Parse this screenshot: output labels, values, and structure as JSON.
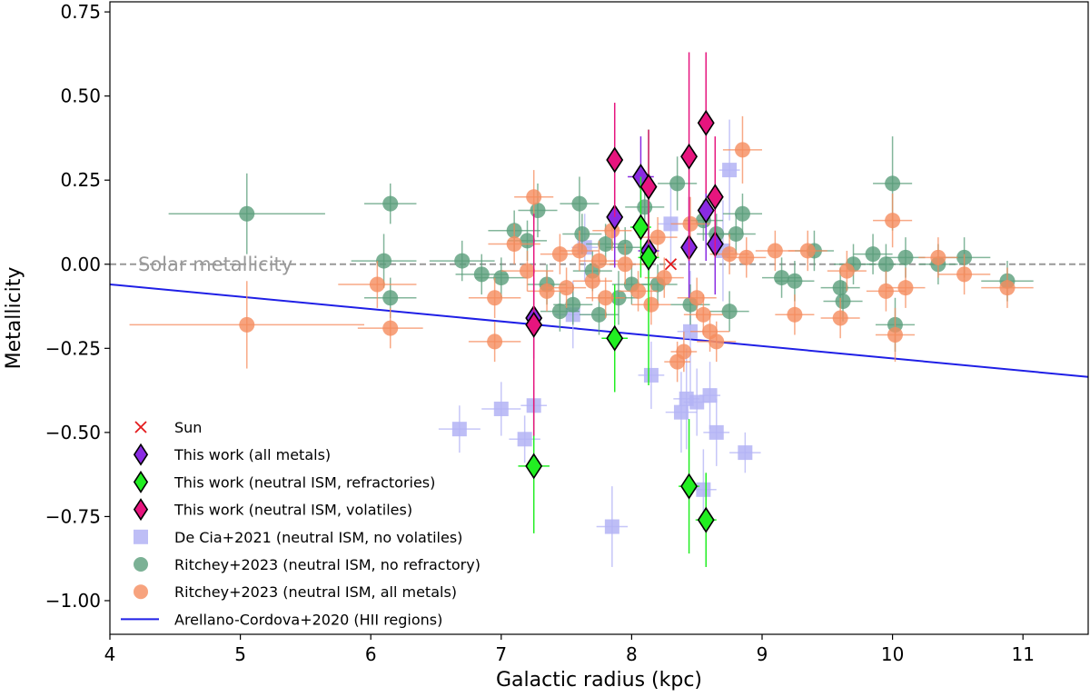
{
  "chart_data": {
    "type": "scatter",
    "title": "",
    "xlabel": "Galactic radius (kpc)",
    "ylabel": "Metallicity",
    "xlim": [
      4,
      11.5
    ],
    "ylim": [
      -1.1,
      0.78
    ],
    "xticks": [
      4,
      5,
      6,
      7,
      8,
      9,
      10,
      11
    ],
    "xtick_labels": [
      "4",
      "5",
      "6",
      "7",
      "8",
      "9",
      "10",
      "11"
    ],
    "yticks": [
      -1.0,
      -0.75,
      -0.5,
      -0.25,
      0.0,
      0.25,
      0.5,
      0.75
    ],
    "ytick_labels": [
      "−1.00",
      "−0.75",
      "−0.50",
      "−0.25",
      "0.00",
      "0.25",
      "0.50",
      "0.75"
    ],
    "grid": false,
    "legend_position": "bottom-left",
    "annotations": [
      {
        "id": "solar",
        "text": "Solar metallicity",
        "x": 4.22,
        "y": 0.03
      }
    ],
    "reference_lines": [
      {
        "id": "solar-line",
        "name": "Solar metallicity",
        "y": 0.0,
        "style": "dashed",
        "color": "#999999"
      }
    ],
    "series": [
      {
        "id": "arellano",
        "name": "Arellano-Cordova+2020 (HII regions)",
        "kind": "line",
        "color": "#1f1fe6",
        "points": [
          [
            4,
            -0.06
          ],
          [
            11.5,
            -0.335
          ]
        ]
      },
      {
        "id": "decia",
        "name": "De Cia+2021 (neutral ISM, no volatiles)",
        "kind": "scatter",
        "marker": "square",
        "color": "#b3b3f5",
        "points": [
          {
            "x": 6.68,
            "y": -0.49,
            "xe": 0.16,
            "ye": 0.07
          },
          {
            "x": 7.0,
            "y": -0.43,
            "xe": 0.15,
            "ye": 0.08
          },
          {
            "x": 7.18,
            "y": -0.52,
            "xe": 0.12,
            "ye": 0.07
          },
          {
            "x": 7.25,
            "y": -0.42,
            "xe": 0.1,
            "ye": 0.06
          },
          {
            "x": 7.55,
            "y": -0.15,
            "xe": 0.14,
            "ye": 0.1
          },
          {
            "x": 7.64,
            "y": 0.05,
            "xe": 0.1,
            "ye": 0.1
          },
          {
            "x": 7.85,
            "y": -0.78,
            "xe": 0.12,
            "ye": 0.12
          },
          {
            "x": 8.15,
            "y": -0.33,
            "xe": 0.1,
            "ye": 0.1
          },
          {
            "x": 8.3,
            "y": 0.12,
            "xe": 0.1,
            "ye": 0.12
          },
          {
            "x": 8.38,
            "y": -0.44,
            "xe": 0.12,
            "ye": 0.12
          },
          {
            "x": 8.42,
            "y": -0.4,
            "xe": 0.1,
            "ye": 0.15
          },
          {
            "x": 8.45,
            "y": -0.2,
            "xe": 0.1,
            "ye": 0.18
          },
          {
            "x": 8.5,
            "y": -0.41,
            "xe": 0.1,
            "ye": 0.1
          },
          {
            "x": 8.55,
            "y": -0.67,
            "xe": 0.1,
            "ye": 0.12
          },
          {
            "x": 8.6,
            "y": -0.39,
            "xe": 0.08,
            "ye": 0.1
          },
          {
            "x": 8.65,
            "y": -0.5,
            "xe": 0.1,
            "ye": 0.1
          },
          {
            "x": 8.7,
            "y": 0.04,
            "xe": 0.08,
            "ye": 0.15
          },
          {
            "x": 8.75,
            "y": 0.28,
            "xe": 0.08,
            "ye": 0.15
          },
          {
            "x": 8.87,
            "y": -0.56,
            "xe": 0.12,
            "ye": 0.06
          }
        ]
      },
      {
        "id": "ritchey-norefr",
        "name": "Ritchey+2023 (neutral ISM, no refractory)",
        "kind": "scatter",
        "marker": "circle",
        "color": "#5a9e7a",
        "points": [
          {
            "x": 5.05,
            "y": 0.15,
            "xe": 0.6,
            "ye": 0.12
          },
          {
            "x": 6.1,
            "y": 0.01,
            "xe": 0.25,
            "ye": 0.08
          },
          {
            "x": 6.15,
            "y": 0.18,
            "xe": 0.2,
            "ye": 0.06
          },
          {
            "x": 6.15,
            "y": -0.1,
            "xe": 0.2,
            "ye": 0.06
          },
          {
            "x": 6.7,
            "y": 0.01,
            "xe": 0.25,
            "ye": 0.06
          },
          {
            "x": 6.85,
            "y": -0.03,
            "xe": 0.2,
            "ye": 0.06
          },
          {
            "x": 7.0,
            "y": -0.04,
            "xe": 0.2,
            "ye": 0.06
          },
          {
            "x": 7.1,
            "y": 0.1,
            "xe": 0.2,
            "ye": 0.06
          },
          {
            "x": 7.2,
            "y": 0.07,
            "xe": 0.15,
            "ye": 0.06
          },
          {
            "x": 7.28,
            "y": 0.16,
            "xe": 0.15,
            "ye": 0.08
          },
          {
            "x": 7.35,
            "y": -0.06,
            "xe": 0.15,
            "ye": 0.06
          },
          {
            "x": 7.45,
            "y": -0.14,
            "xe": 0.15,
            "ye": 0.06
          },
          {
            "x": 7.55,
            "y": -0.12,
            "xe": 0.15,
            "ye": 0.06
          },
          {
            "x": 7.6,
            "y": 0.18,
            "xe": 0.15,
            "ye": 0.08
          },
          {
            "x": 7.62,
            "y": 0.09,
            "xe": 0.15,
            "ye": 0.06
          },
          {
            "x": 7.7,
            "y": -0.02,
            "xe": 0.15,
            "ye": 0.06
          },
          {
            "x": 7.75,
            "y": -0.15,
            "xe": 0.15,
            "ye": 0.06
          },
          {
            "x": 7.8,
            "y": 0.06,
            "xe": 0.15,
            "ye": 0.06
          },
          {
            "x": 7.9,
            "y": -0.1,
            "xe": 0.15,
            "ye": 0.08
          },
          {
            "x": 7.95,
            "y": 0.05,
            "xe": 0.15,
            "ye": 0.06
          },
          {
            "x": 8.0,
            "y": -0.06,
            "xe": 0.15,
            "ye": 0.06
          },
          {
            "x": 8.1,
            "y": 0.17,
            "xe": 0.15,
            "ye": 0.08
          },
          {
            "x": 8.2,
            "y": -0.06,
            "xe": 0.15,
            "ye": 0.06
          },
          {
            "x": 8.35,
            "y": 0.24,
            "xe": 0.15,
            "ye": 0.08
          },
          {
            "x": 8.45,
            "y": -0.12,
            "xe": 0.15,
            "ye": 0.06
          },
          {
            "x": 8.55,
            "y": 0.13,
            "xe": 0.15,
            "ye": 0.06
          },
          {
            "x": 8.65,
            "y": 0.09,
            "xe": 0.15,
            "ye": 0.06
          },
          {
            "x": 8.75,
            "y": -0.14,
            "xe": 0.15,
            "ye": 0.06
          },
          {
            "x": 8.8,
            "y": 0.09,
            "xe": 0.15,
            "ye": 0.06
          },
          {
            "x": 8.85,
            "y": 0.15,
            "xe": 0.15,
            "ye": 0.06
          },
          {
            "x": 9.15,
            "y": -0.04,
            "xe": 0.15,
            "ye": 0.06
          },
          {
            "x": 9.25,
            "y": -0.05,
            "xe": 0.15,
            "ye": 0.06
          },
          {
            "x": 9.4,
            "y": 0.04,
            "xe": 0.15,
            "ye": 0.06
          },
          {
            "x": 9.6,
            "y": -0.07,
            "xe": 0.15,
            "ye": 0.06
          },
          {
            "x": 9.62,
            "y": -0.11,
            "xe": 0.15,
            "ye": 0.06
          },
          {
            "x": 9.7,
            "y": 0.0,
            "xe": 0.15,
            "ye": 0.06
          },
          {
            "x": 9.85,
            "y": 0.03,
            "xe": 0.15,
            "ye": 0.06
          },
          {
            "x": 9.95,
            "y": 0.0,
            "xe": 0.15,
            "ye": 0.06
          },
          {
            "x": 10.0,
            "y": 0.24,
            "xe": 0.15,
            "ye": 0.14
          },
          {
            "x": 10.02,
            "y": -0.18,
            "xe": 0.15,
            "ye": 0.08
          },
          {
            "x": 10.1,
            "y": 0.02,
            "xe": 0.15,
            "ye": 0.06
          },
          {
            "x": 10.35,
            "y": 0.0,
            "xe": 0.15,
            "ye": 0.06
          },
          {
            "x": 10.55,
            "y": 0.02,
            "xe": 0.2,
            "ye": 0.06
          },
          {
            "x": 10.88,
            "y": -0.05,
            "xe": 0.2,
            "ye": 0.06
          }
        ]
      },
      {
        "id": "ritchey-all",
        "name": "Ritchey+2023 (neutral ISM, all metals)",
        "kind": "scatter",
        "marker": "circle",
        "color": "#f58c5e",
        "points": [
          {
            "x": 5.05,
            "y": -0.18,
            "xe": 0.9,
            "ye": 0.13
          },
          {
            "x": 6.05,
            "y": -0.06,
            "xe": 0.3,
            "ye": 0.07
          },
          {
            "x": 6.15,
            "y": -0.19,
            "xe": 0.25,
            "ye": 0.06
          },
          {
            "x": 6.95,
            "y": -0.1,
            "xe": 0.2,
            "ye": 0.06
          },
          {
            "x": 6.95,
            "y": -0.23,
            "xe": 0.2,
            "ye": 0.06
          },
          {
            "x": 7.1,
            "y": 0.06,
            "xe": 0.2,
            "ye": 0.06
          },
          {
            "x": 7.2,
            "y": -0.02,
            "xe": 0.2,
            "ye": 0.06
          },
          {
            "x": 7.25,
            "y": 0.2,
            "xe": 0.15,
            "ye": 0.08
          },
          {
            "x": 7.35,
            "y": -0.08,
            "xe": 0.15,
            "ye": 0.06
          },
          {
            "x": 7.45,
            "y": 0.03,
            "xe": 0.15,
            "ye": 0.06
          },
          {
            "x": 7.5,
            "y": -0.07,
            "xe": 0.15,
            "ye": 0.06
          },
          {
            "x": 7.6,
            "y": 0.04,
            "xe": 0.15,
            "ye": 0.06
          },
          {
            "x": 7.7,
            "y": -0.05,
            "xe": 0.15,
            "ye": 0.06
          },
          {
            "x": 7.75,
            "y": 0.01,
            "xe": 0.15,
            "ye": 0.06
          },
          {
            "x": 7.8,
            "y": -0.1,
            "xe": 0.15,
            "ye": 0.06
          },
          {
            "x": 7.85,
            "y": 0.1,
            "xe": 0.15,
            "ye": 0.06
          },
          {
            "x": 7.95,
            "y": 0.0,
            "xe": 0.15,
            "ye": 0.06
          },
          {
            "x": 8.05,
            "y": -0.08,
            "xe": 0.15,
            "ye": 0.06
          },
          {
            "x": 8.15,
            "y": -0.12,
            "xe": 0.15,
            "ye": 0.06
          },
          {
            "x": 8.2,
            "y": 0.08,
            "xe": 0.15,
            "ye": 0.06
          },
          {
            "x": 8.25,
            "y": -0.04,
            "xe": 0.15,
            "ye": 0.06
          },
          {
            "x": 8.35,
            "y": -0.29,
            "xe": 0.1,
            "ye": 0.06
          },
          {
            "x": 8.4,
            "y": -0.26,
            "xe": 0.1,
            "ye": 0.06
          },
          {
            "x": 8.45,
            "y": 0.12,
            "xe": 0.15,
            "ye": 0.08
          },
          {
            "x": 8.5,
            "y": -0.1,
            "xe": 0.15,
            "ye": 0.06
          },
          {
            "x": 8.55,
            "y": -0.15,
            "xe": 0.15,
            "ye": 0.06
          },
          {
            "x": 8.6,
            "y": -0.2,
            "xe": 0.15,
            "ye": 0.06
          },
          {
            "x": 8.65,
            "y": -0.23,
            "xe": 0.15,
            "ye": 0.06
          },
          {
            "x": 8.75,
            "y": 0.03,
            "xe": 0.15,
            "ye": 0.06
          },
          {
            "x": 8.85,
            "y": 0.34,
            "xe": 0.15,
            "ye": 0.1
          },
          {
            "x": 8.88,
            "y": 0.02,
            "xe": 0.15,
            "ye": 0.06
          },
          {
            "x": 9.1,
            "y": 0.04,
            "xe": 0.15,
            "ye": 0.06
          },
          {
            "x": 9.25,
            "y": -0.15,
            "xe": 0.15,
            "ye": 0.06
          },
          {
            "x": 9.35,
            "y": 0.04,
            "xe": 0.15,
            "ye": 0.06
          },
          {
            "x": 9.6,
            "y": -0.16,
            "xe": 0.15,
            "ye": 0.06
          },
          {
            "x": 9.65,
            "y": -0.02,
            "xe": 0.15,
            "ye": 0.06
          },
          {
            "x": 9.95,
            "y": -0.08,
            "xe": 0.15,
            "ye": 0.06
          },
          {
            "x": 10.0,
            "y": 0.13,
            "xe": 0.15,
            "ye": 0.08
          },
          {
            "x": 10.02,
            "y": -0.21,
            "xe": 0.15,
            "ye": 0.08
          },
          {
            "x": 10.1,
            "y": -0.07,
            "xe": 0.15,
            "ye": 0.06
          },
          {
            "x": 10.35,
            "y": 0.02,
            "xe": 0.15,
            "ye": 0.06
          },
          {
            "x": 10.55,
            "y": -0.03,
            "xe": 0.2,
            "ye": 0.06
          },
          {
            "x": 10.88,
            "y": -0.07,
            "xe": 0.2,
            "ye": 0.06
          }
        ]
      },
      {
        "id": "this-all",
        "name": "This work (all metals)",
        "kind": "scatter",
        "marker": "diamond",
        "color": "#8a2be2",
        "points": [
          {
            "x": 7.25,
            "y": -0.16,
            "xe": 0.05,
            "ye": 0.12
          },
          {
            "x": 7.87,
            "y": 0.14,
            "xe": 0.05,
            "ye": 0.15
          },
          {
            "x": 8.07,
            "y": 0.26,
            "xe": 0.1,
            "ye": 0.12
          },
          {
            "x": 8.13,
            "y": 0.04,
            "xe": 0.08,
            "ye": 0.12
          },
          {
            "x": 8.44,
            "y": 0.05,
            "xe": 0.05,
            "ye": 0.15
          },
          {
            "x": 8.57,
            "y": 0.16,
            "xe": 0.05,
            "ye": 0.15
          },
          {
            "x": 8.64,
            "y": 0.06,
            "xe": 0.05,
            "ye": 0.15
          }
        ]
      },
      {
        "id": "this-refr",
        "name": "This work (neutral ISM, refractories)",
        "kind": "scatter",
        "marker": "diamond",
        "color": "#22ee22",
        "points": [
          {
            "x": 7.25,
            "y": -0.6,
            "xe": 0.12,
            "ye": 0.2
          },
          {
            "x": 7.87,
            "y": -0.22,
            "xe": 0.1,
            "ye": 0.16
          },
          {
            "x": 8.07,
            "y": 0.11,
            "xe": 0.08,
            "ye": 0.15
          },
          {
            "x": 8.13,
            "y": 0.02,
            "xe": 0.08,
            "ye": 0.38
          },
          {
            "x": 8.44,
            "y": -0.66,
            "xe": 0.08,
            "ye": 0.2
          },
          {
            "x": 8.57,
            "y": -0.76,
            "xe": 0.08,
            "ye": 0.14
          }
        ]
      },
      {
        "id": "this-vol",
        "name": "This work (neutral ISM, volatiles)",
        "kind": "scatter",
        "marker": "diamond",
        "color": "#e6157e",
        "points": [
          {
            "x": 7.25,
            "y": -0.18,
            "xe": 0.04,
            "ye": 0.33
          },
          {
            "x": 7.87,
            "y": 0.31,
            "xe": 0.06,
            "ye": 0.17
          },
          {
            "x": 8.13,
            "y": 0.23,
            "xe": 0.05,
            "ye": 0.17
          },
          {
            "x": 8.44,
            "y": 0.32,
            "xe": 0.06,
            "ye": 0.31
          },
          {
            "x": 8.57,
            "y": 0.42,
            "xe": 0.05,
            "ye": 0.21
          },
          {
            "x": 8.64,
            "y": 0.2,
            "xe": 0.06,
            "ye": 0.18
          }
        ]
      },
      {
        "id": "sun",
        "name": "Sun",
        "kind": "scatter",
        "marker": "x",
        "color": "#e31a1c",
        "points": [
          {
            "x": 8.3,
            "y": 0.0,
            "xe": 0,
            "ye": 0
          }
        ]
      }
    ],
    "draw_order": [
      "decia",
      "ritchey-norefr",
      "ritchey-all",
      "this-all",
      "this-refr",
      "this-vol",
      "sun"
    ],
    "legend_order": [
      "sun",
      "this-all",
      "this-refr",
      "this-vol",
      "decia",
      "ritchey-norefr",
      "ritchey-all",
      "arellano"
    ]
  }
}
